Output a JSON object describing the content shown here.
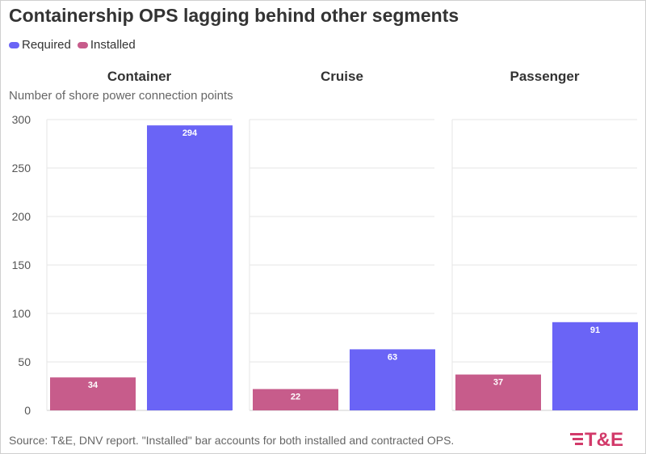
{
  "title": "Containership OPS lagging behind other segments",
  "subtitle": "Number of shore power connection points",
  "source": "Source: T&E, DNV report. \"Installed\" bar accounts for both installed and contracted OPS.",
  "logo_text": "T&E",
  "colors": {
    "required": "#6a64f6",
    "installed": "#c75c8b",
    "grid": "#e6e6e6",
    "axis_text": "#555555",
    "logo": "#d23a6a"
  },
  "chart_data": {
    "type": "bar",
    "title": "Containership OPS lagging behind other segments",
    "ylabel": "Number of shore power connection points",
    "ylim": [
      0,
      300
    ],
    "yticks": [
      0,
      50,
      100,
      150,
      200,
      250,
      300
    ],
    "grid": true,
    "legend": "top-left",
    "series_names": [
      "Required",
      "Installed"
    ],
    "panels": [
      {
        "category": "Container",
        "installed": 34,
        "required": 294
      },
      {
        "category": "Cruise",
        "installed": 22,
        "required": 63
      },
      {
        "category": "Passenger",
        "installed": 37,
        "required": 91
      }
    ]
  }
}
